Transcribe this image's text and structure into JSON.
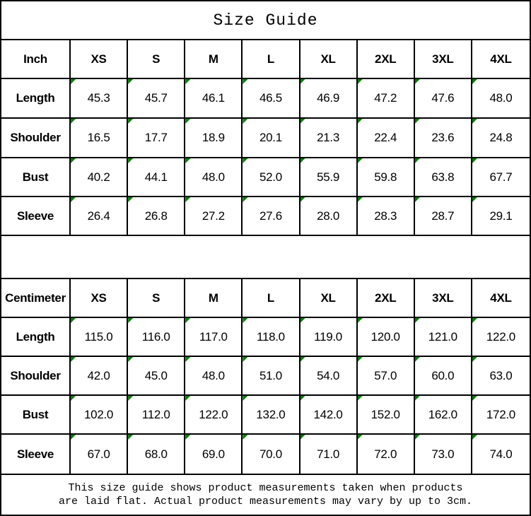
{
  "title": "Size Guide",
  "colors": {
    "border": "#000000",
    "text": "#000000",
    "background": "#ffffff",
    "flag_green": "#008000"
  },
  "tables": [
    {
      "unit": "Inch",
      "sizes": [
        "XS",
        "S",
        "M",
        "L",
        "XL",
        "2XL",
        "3XL",
        "4XL"
      ],
      "rows": [
        {
          "label": "Length",
          "values": [
            "45.3",
            "45.7",
            "46.1",
            "46.5",
            "46.9",
            "47.2",
            "47.6",
            "48.0"
          ]
        },
        {
          "label": "Shoulder",
          "values": [
            "16.5",
            "17.7",
            "18.9",
            "20.1",
            "21.3",
            "22.4",
            "23.6",
            "24.8"
          ]
        },
        {
          "label": "Bust",
          "values": [
            "40.2",
            "44.1",
            "48.0",
            "52.0",
            "55.9",
            "59.8",
            "63.8",
            "67.7"
          ]
        },
        {
          "label": "Sleeve",
          "values": [
            "26.4",
            "26.8",
            "27.2",
            "27.6",
            "28.0",
            "28.3",
            "28.7",
            "29.1"
          ]
        }
      ]
    },
    {
      "unit": "Centimeter",
      "sizes": [
        "XS",
        "S",
        "M",
        "L",
        "XL",
        "2XL",
        "3XL",
        "4XL"
      ],
      "rows": [
        {
          "label": "Length",
          "values": [
            "115.0",
            "116.0",
            "117.0",
            "118.0",
            "119.0",
            "120.0",
            "121.0",
            "122.0"
          ]
        },
        {
          "label": "Shoulder",
          "values": [
            "42.0",
            "45.0",
            "48.0",
            "51.0",
            "54.0",
            "57.0",
            "60.0",
            "63.0"
          ]
        },
        {
          "label": "Bust",
          "values": [
            "102.0",
            "112.0",
            "122.0",
            "132.0",
            "142.0",
            "152.0",
            "162.0",
            "172.0"
          ]
        },
        {
          "label": "Sleeve",
          "values": [
            "67.0",
            "68.0",
            "69.0",
            "70.0",
            "71.0",
            "72.0",
            "73.0",
            "74.0"
          ]
        }
      ]
    }
  ],
  "footer": {
    "line1": "This size guide shows product measurements taken when products",
    "line2": "are laid flat. Actual product measurements may vary by up to 3cm."
  },
  "chart_data": [
    {
      "type": "table",
      "title": "Size Guide (Inch)",
      "columns": [
        "Inch",
        "XS",
        "S",
        "M",
        "L",
        "XL",
        "2XL",
        "3XL",
        "4XL"
      ],
      "rows": [
        [
          "Length",
          45.3,
          45.7,
          46.1,
          46.5,
          46.9,
          47.2,
          47.6,
          48.0
        ],
        [
          "Shoulder",
          16.5,
          17.7,
          18.9,
          20.1,
          21.3,
          22.4,
          23.6,
          24.8
        ],
        [
          "Bust",
          40.2,
          44.1,
          48.0,
          52.0,
          55.9,
          59.8,
          63.8,
          67.7
        ],
        [
          "Sleeve",
          26.4,
          26.8,
          27.2,
          27.6,
          28.0,
          28.3,
          28.7,
          29.1
        ]
      ]
    },
    {
      "type": "table",
      "title": "Size Guide (Centimeter)",
      "columns": [
        "Centimeter",
        "XS",
        "S",
        "M",
        "L",
        "XL",
        "2XL",
        "3XL",
        "4XL"
      ],
      "rows": [
        [
          "Length",
          115.0,
          116.0,
          117.0,
          118.0,
          119.0,
          120.0,
          121.0,
          122.0
        ],
        [
          "Shoulder",
          42.0,
          45.0,
          48.0,
          51.0,
          54.0,
          57.0,
          60.0,
          63.0
        ],
        [
          "Bust",
          102.0,
          112.0,
          122.0,
          132.0,
          142.0,
          152.0,
          162.0,
          172.0
        ],
        [
          "Sleeve",
          67.0,
          68.0,
          69.0,
          70.0,
          71.0,
          72.0,
          73.0,
          74.0
        ]
      ]
    }
  ]
}
